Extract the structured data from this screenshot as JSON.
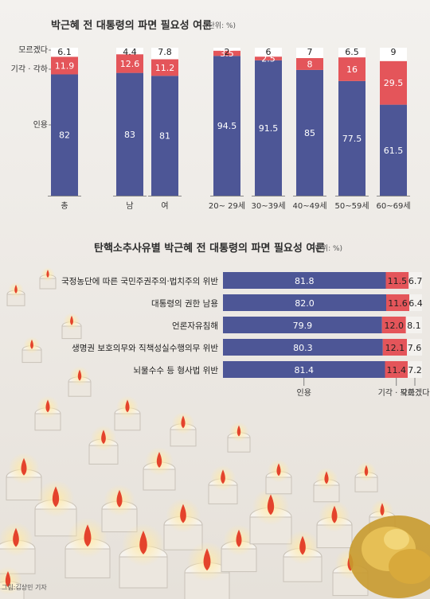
{
  "colors": {
    "blue": "#4d5696",
    "red": "#e4555a",
    "white": "#ffffff",
    "paper": "#f3f1ee"
  },
  "credit": "그림:김상민 기자",
  "chart_data": [
    {
      "type": "bar",
      "stacked": true,
      "orientation": "vertical",
      "title": "박근혜 전 대통령의 파면 필요성 여론",
      "unit": "(단위: %)",
      "categories": [
        "총",
        "남",
        "여",
        "20~ 29세",
        "30~39세",
        "40~49세",
        "50~59세",
        "60~69세"
      ],
      "series": [
        {
          "name": "인용",
          "values": [
            82,
            83,
            81,
            94.5,
            91.5,
            85,
            77.5,
            61.5
          ],
          "labels": [
            "82",
            "83",
            "81",
            "94.5",
            "91.5",
            "85",
            "77.5",
            "61.5"
          ]
        },
        {
          "name": "기각 · 각하",
          "values": [
            11.9,
            12.6,
            11.2,
            3.5,
            2.5,
            8,
            16,
            29.5
          ],
          "labels": [
            "11.9",
            "12.6",
            "11.2",
            "3.5",
            "2.5",
            "8",
            "16",
            "29.5"
          ]
        },
        {
          "name": "모르겠다",
          "values": [
            6.1,
            4.4,
            7.8,
            2,
            6,
            7,
            6.5,
            9
          ],
          "labels": [
            "6.1",
            "4.4",
            "7.8",
            "2",
            "6",
            "7",
            "6.5",
            "9"
          ]
        }
      ],
      "ylim": [
        0,
        100
      ]
    },
    {
      "type": "bar",
      "stacked": true,
      "orientation": "horizontal",
      "title": "탄핵소추사유별 박근혜 전 대통령의 파면 필요성 여론",
      "unit": "(단위: %)",
      "categories": [
        "국정농단에 따른 국민주권주의·법치주의 위반",
        "대통령의 권한 남용",
        "언론자유침해",
        "생명권 보호의무와 직책성실수행의무 위반",
        "뇌물수수 등 형사법 위반"
      ],
      "series": [
        {
          "name": "인용",
          "values": [
            81.8,
            82.0,
            79.9,
            80.3,
            81.4
          ],
          "labels": [
            "81.8",
            "82.0",
            "79.9",
            "80.3",
            "81.4"
          ]
        },
        {
          "name": "기각 · 각하",
          "values": [
            11.5,
            11.6,
            12.0,
            12.1,
            11.4
          ],
          "labels": [
            "11.5",
            "11.6",
            "12.0",
            "12.1",
            "11.4"
          ]
        },
        {
          "name": "모르겠다",
          "values": [
            6.7,
            6.4,
            8.1,
            7.6,
            7.2
          ],
          "labels": [
            "6.7",
            "6.4",
            "8.1",
            "7.6",
            "7.2"
          ]
        }
      ],
      "xlim": [
        0,
        100
      ]
    }
  ]
}
